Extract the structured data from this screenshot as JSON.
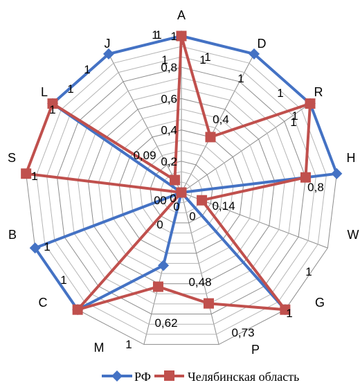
{
  "chart_data": {
    "type": "radar",
    "categories": [
      "A",
      "D",
      "R",
      "H",
      "W",
      "G",
      "P",
      "M",
      "C",
      "B",
      "S",
      "L",
      "J"
    ],
    "rmax": 1,
    "rings": [
      0,
      0.2,
      0.4,
      0.6,
      0.8,
      1
    ],
    "ring_labels": [
      "0,2",
      "0,4",
      "0,6",
      "0,8",
      "1"
    ],
    "grid": true,
    "legend_position": "bottom",
    "series": [
      {
        "name": "РФ",
        "color": "#4472C4",
        "marker": "diamond",
        "values": [
          1,
          1,
          1,
          1,
          0,
          1,
          0,
          0.48,
          1,
          1,
          0,
          1,
          1
        ],
        "labels": [
          "1",
          "1",
          "1",
          "",
          "",
          "1",
          "",
          "0,48",
          "1",
          "1",
          "",
          "1",
          "1"
        ]
      },
      {
        "name": "Челябинская область",
        "color": "#C0504D",
        "marker": "square",
        "values": [
          1,
          0.4,
          1,
          0.8,
          0.14,
          1,
          0.73,
          0.62,
          1,
          0,
          1,
          1,
          0.09
        ],
        "labels": [
          "1",
          "0,4",
          "1",
          "0,8",
          "0,14",
          "1",
          "0,73",
          "0,62",
          "1",
          "0",
          "1",
          "1",
          "0,09"
        ]
      }
    ],
    "extra_labels": [
      "1",
      "1",
      "1",
      "1",
      "0",
      "0",
      "0",
      "0",
      "0"
    ]
  }
}
